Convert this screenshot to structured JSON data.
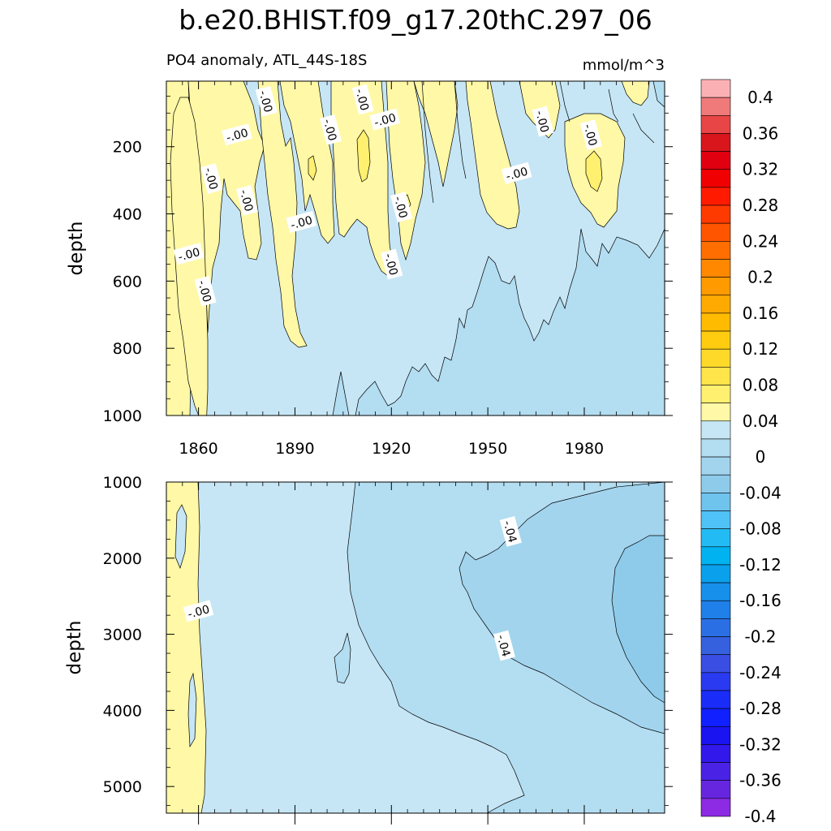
{
  "figure_title": "b.e20.BHIST.f09_g17.20thC.297_06",
  "chart_data": [
    {
      "type": "contour",
      "panel": "upper",
      "title": "PO4 anomaly, ATL_44S-18S",
      "units": "mmol/m^3",
      "xlabel": "",
      "ylabel": "depth",
      "xlim": [
        1850,
        2005
      ],
      "ylim": [
        1000,
        5
      ],
      "y_inverted": true,
      "xticks": [
        1860,
        1890,
        1920,
        1950,
        1980
      ],
      "yticks": [
        200,
        400,
        600,
        800,
        1000
      ],
      "contour_labels": [
        {
          "text": "-.00",
          "x": 1857,
          "y": 520
        },
        {
          "text": "-.00",
          "x": 1862,
          "y": 630
        },
        {
          "text": "-.00",
          "x": 1864,
          "y": 295
        },
        {
          "text": "-.00",
          "x": 1872,
          "y": 165
        },
        {
          "text": "-.00",
          "x": 1875,
          "y": 360
        },
        {
          "text": "-.00",
          "x": 1881,
          "y": 65
        },
        {
          "text": "-.00",
          "x": 1892,
          "y": 425
        },
        {
          "text": "-.00",
          "x": 1901,
          "y": 150
        },
        {
          "text": "-.00",
          "x": 1911,
          "y": 60
        },
        {
          "text": "-.00",
          "x": 1918,
          "y": 120
        },
        {
          "text": "-.00",
          "x": 1920,
          "y": 550
        },
        {
          "text": "-.00",
          "x": 1923,
          "y": 380
        },
        {
          "text": "-.00",
          "x": 1959,
          "y": 280
        },
        {
          "text": "-.00",
          "x": 1967,
          "y": 125
        },
        {
          "text": "-.00",
          "x": 1982,
          "y": 165
        }
      ],
      "regions": [
        {
          "level": "0 to 0.02",
          "description": "positive anomaly near surface and in a column near 1850-1860"
        },
        {
          "level": "0 to -0.02",
          "description": "bulk of the section"
        },
        {
          "level": "-0.02 to -0.04",
          "description": "deep water after 1910 and right side near surface"
        }
      ]
    },
    {
      "type": "contour",
      "panel": "lower",
      "xlabel": "",
      "ylabel": "depth",
      "xlim": [
        1850,
        2005
      ],
      "ylim": [
        5350,
        1000
      ],
      "y_inverted": true,
      "yticks": [
        1000,
        2000,
        3000,
        4000,
        5000
      ],
      "contour_labels": [
        {
          "text": "-.00",
          "x": 1860,
          "y": 2700
        },
        {
          "text": "-.04",
          "x": 1957,
          "y": 1650
        },
        {
          "text": "-.04",
          "x": 1955,
          "y": 3150
        }
      ],
      "regions": [
        {
          "level": "0 to 0.02",
          "description": "strip near 1850-1860"
        },
        {
          "level": "0 to -0.02",
          "description": "left and deep-left region"
        },
        {
          "level": "-0.02 to -0.04",
          "description": "middle-right region"
        },
        {
          "level": "-0.04 to -0.06",
          "description": "right-hand wedge after ~1945"
        },
        {
          "level": "-0.06 to -0.08",
          "description": "core near 1990-2005, 1800-3800 m"
        }
      ]
    }
  ],
  "colorbar": {
    "labels": [
      "0.4",
      "0.36",
      "0.32",
      "0.28",
      "0.24",
      "0.2",
      "0.16",
      "0.12",
      "0.08",
      "0.04",
      "0",
      "-0.04",
      "-0.08",
      "-0.12",
      "-0.16",
      "-0.2",
      "-0.24",
      "-0.28",
      "-0.32",
      "-0.36",
      "-0.4"
    ],
    "colors": [
      "#fbb1b4",
      "#f07a7a",
      "#e84646",
      "#d8161c",
      "#e00010",
      "#f00000",
      "#ff1a00",
      "#ff3a00",
      "#ff5500",
      "#ff6e00",
      "#ff8800",
      "#ff9a00",
      "#ffaa00",
      "#ffbb00",
      "#ffcc10",
      "#ffd92a",
      "#ffe44a",
      "#fff070",
      "#fff8a6",
      "#c6e6f5",
      "#b3ddf1",
      "#a2d4ee",
      "#8ecbea",
      "#6fc4ee",
      "#4fc3f7",
      "#23bbf4",
      "#00b2f0",
      "#0aa0ec",
      "#1690ea",
      "#1e80e8",
      "#2a70e4",
      "#3560de",
      "#3a4ee4",
      "#2a3af0",
      "#1a2cf8",
      "#1020ff",
      "#1a14f0",
      "#3218ea",
      "#4a22e6",
      "#6626e0",
      "#8c2ae4"
    ]
  }
}
